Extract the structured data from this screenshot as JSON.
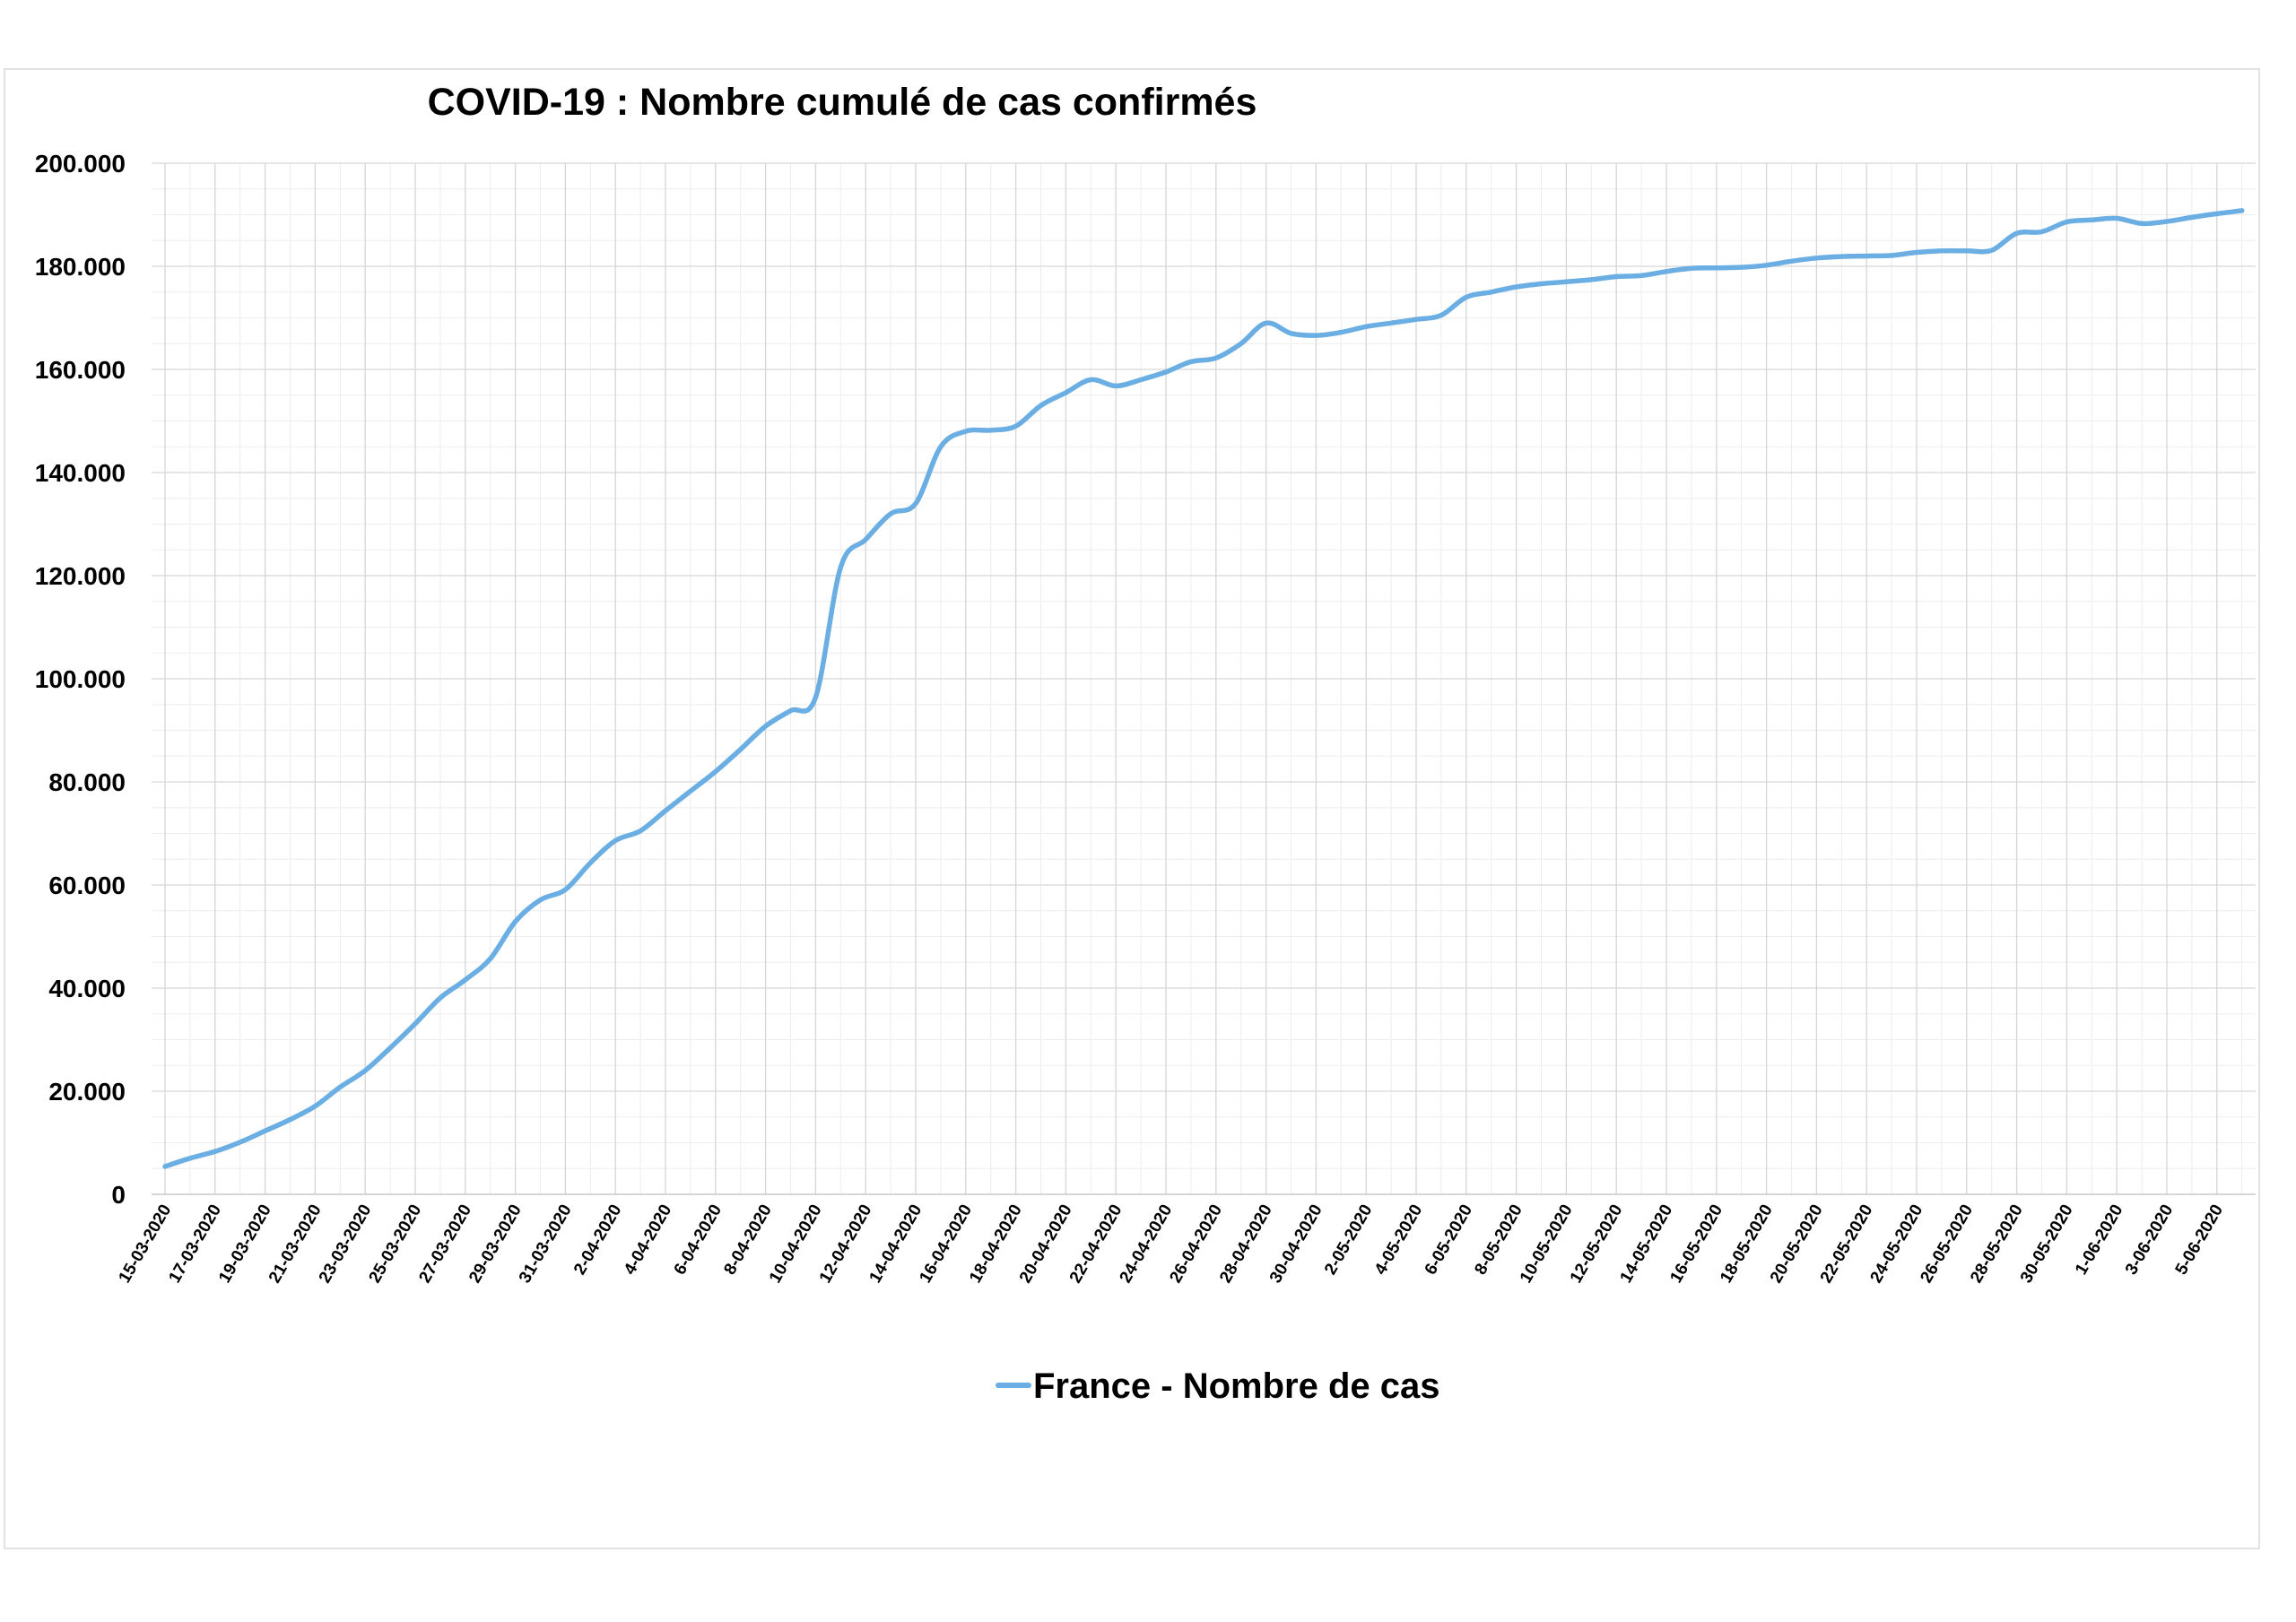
{
  "chart_data": {
    "type": "line",
    "title": "COVID-19 : Nombre cumulé de cas confirmés",
    "xlabel": "",
    "ylabel": "",
    "ylim": [
      0,
      200000
    ],
    "y_tick_labels": [
      "0",
      "20.000",
      "40.000",
      "60.000",
      "80.000",
      "100.000",
      "120.000",
      "140.000",
      "160.000",
      "180.000",
      "200.000"
    ],
    "x_tick_labels": [
      "15-03-2020",
      "17-03-2020",
      "19-03-2020",
      "21-03-2020",
      "23-03-2020",
      "25-03-2020",
      "27-03-2020",
      "29-03-2020",
      "31-03-2020",
      "2-04-2020",
      "4-04-2020",
      "6-04-2020",
      "8-04-2020",
      "10-04-2020",
      "12-04-2020",
      "14-04-2020",
      "16-04-2020",
      "18-04-2020",
      "20-04-2020",
      "22-04-2020",
      "24-04-2020",
      "26-04-2020",
      "28-04-2020",
      "30-04-2020",
      "2-05-2020",
      "4-05-2020",
      "6-05-2020",
      "8-05-2020",
      "10-05-2020",
      "12-05-2020",
      "14-05-2020",
      "16-05-2020",
      "18-05-2020",
      "20-05-2020",
      "22-05-2020",
      "24-05-2020",
      "26-05-2020",
      "28-05-2020",
      "30-05-2020",
      "1-06-2020",
      "3-06-2020",
      "5-06-2020"
    ],
    "grid": true,
    "legend_position": "bottom",
    "series": [
      {
        "name": "France - Nombre de cas",
        "color": "#6aaee3",
        "x": [
          "15-03-2020",
          "16-03-2020",
          "17-03-2020",
          "18-03-2020",
          "19-03-2020",
          "20-03-2020",
          "21-03-2020",
          "22-03-2020",
          "23-03-2020",
          "24-03-2020",
          "25-03-2020",
          "26-03-2020",
          "27-03-2020",
          "28-03-2020",
          "29-03-2020",
          "30-03-2020",
          "31-03-2020",
          "1-04-2020",
          "2-04-2020",
          "3-04-2020",
          "4-04-2020",
          "5-04-2020",
          "6-04-2020",
          "7-04-2020",
          "8-04-2020",
          "9-04-2020",
          "10-04-2020",
          "11-04-2020",
          "12-04-2020",
          "13-04-2020",
          "14-04-2020",
          "15-04-2020",
          "16-04-2020",
          "17-04-2020",
          "18-04-2020",
          "19-04-2020",
          "20-04-2020",
          "21-04-2020",
          "22-04-2020",
          "23-04-2020",
          "24-04-2020",
          "25-04-2020",
          "26-04-2020",
          "27-04-2020",
          "28-04-2020",
          "29-04-2020",
          "30-04-2020",
          "1-05-2020",
          "2-05-2020",
          "3-05-2020",
          "4-05-2020",
          "5-05-2020",
          "6-05-2020",
          "7-05-2020",
          "8-05-2020",
          "9-05-2020",
          "10-05-2020",
          "11-05-2020",
          "12-05-2020",
          "13-05-2020",
          "14-05-2020",
          "15-05-2020",
          "16-05-2020",
          "17-05-2020",
          "18-05-2020",
          "19-05-2020",
          "20-05-2020",
          "21-05-2020",
          "22-05-2020",
          "23-05-2020",
          "24-05-2020",
          "25-05-2020",
          "26-05-2020",
          "27-05-2020",
          "28-05-2020",
          "29-05-2020",
          "30-05-2020",
          "31-05-2020",
          "1-06-2020",
          "2-06-2020",
          "3-06-2020",
          "4-06-2020",
          "5-06-2020",
          "6-06-2020"
        ],
        "values": [
          5400,
          7000,
          8300,
          10100,
          12300,
          14500,
          17100,
          20800,
          24000,
          28400,
          33100,
          38100,
          41600,
          45700,
          52900,
          57100,
          59100,
          64300,
          68600,
          70500,
          74400,
          78200,
          82000,
          86300,
          90800,
          93800,
          96400,
          121600,
          127000,
          132000,
          134000,
          145000,
          148000,
          148200,
          149000,
          153000,
          155500,
          158000,
          156800,
          158000,
          159500,
          161500,
          162200,
          165000,
          169000,
          167000,
          166600,
          167200,
          168300,
          169000,
          169700,
          170500,
          174000,
          175000,
          176000,
          176600,
          177000,
          177400,
          178000,
          178200,
          179000,
          179600,
          179700,
          179800,
          180200,
          181000,
          181600,
          181900,
          182000,
          182100,
          182700,
          183000,
          183000,
          183100,
          186400,
          186700,
          188600,
          189000,
          189300,
          188300,
          188700,
          189500,
          190200,
          190800
        ]
      }
    ]
  }
}
